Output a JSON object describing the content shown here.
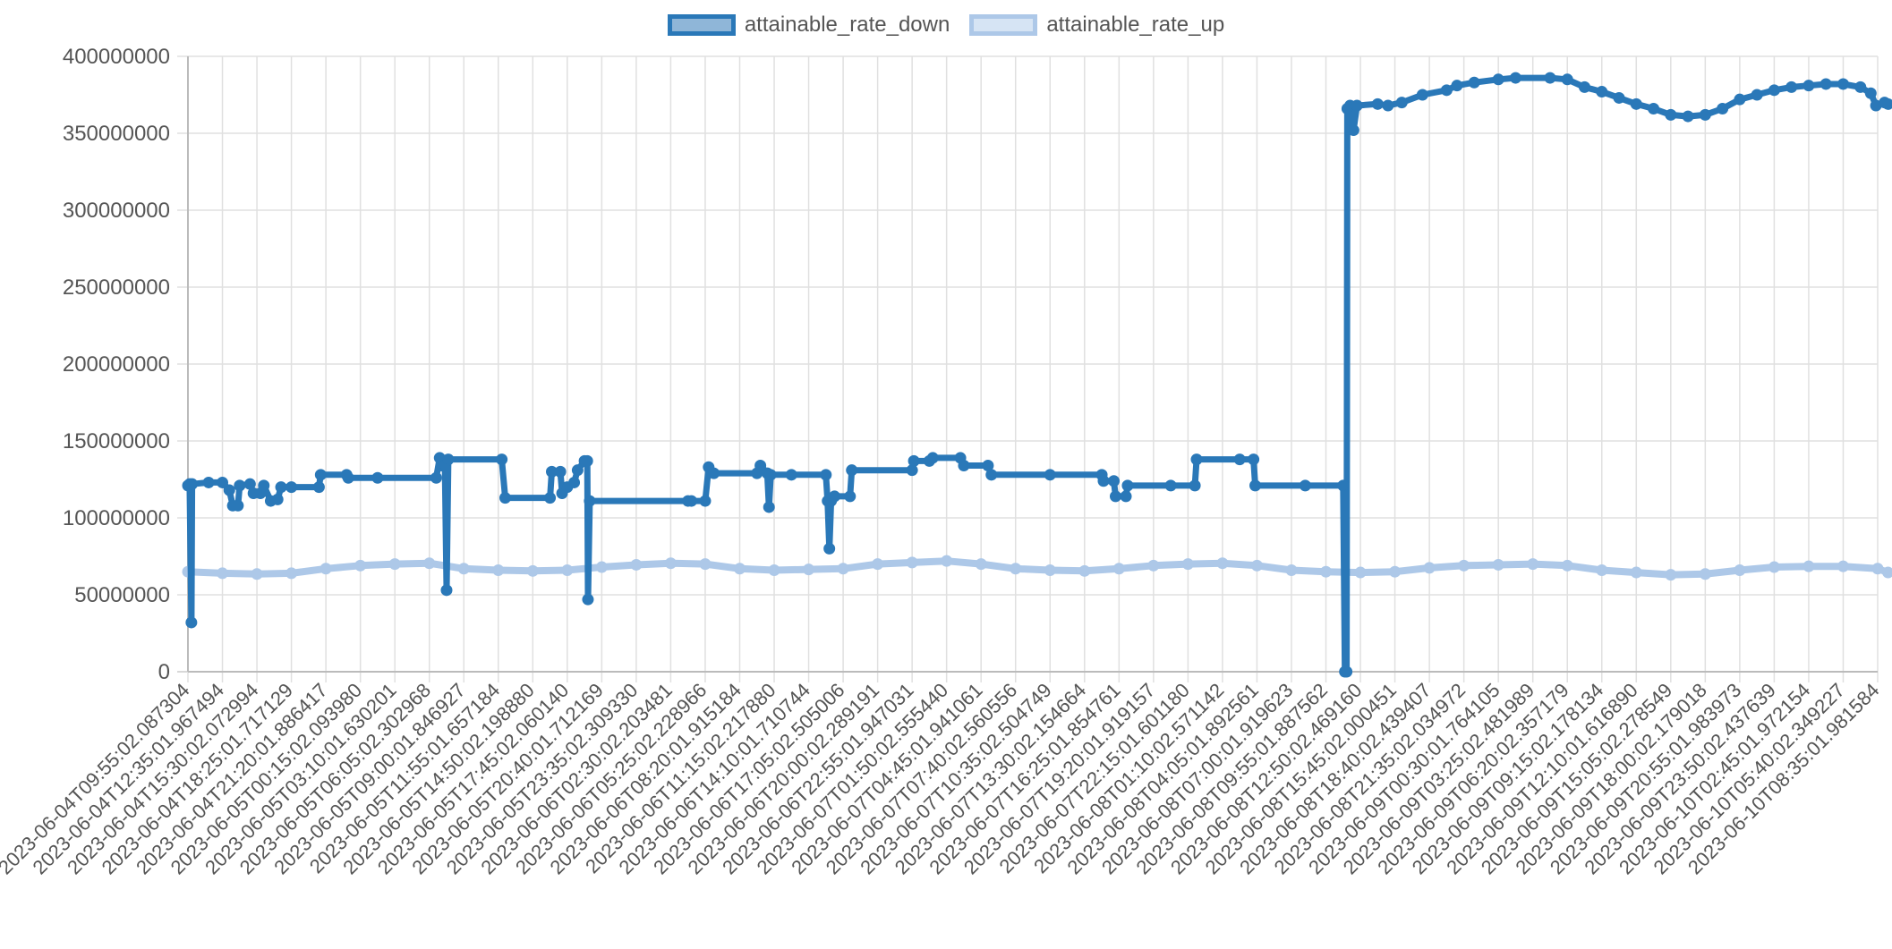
{
  "chart_data": {
    "type": "line",
    "legend_position": "top",
    "grid": true,
    "ylim": [
      0,
      400000000
    ],
    "y_ticks": [
      "0",
      "50000000",
      "100000000",
      "150000000",
      "200000000",
      "250000000",
      "300000000",
      "350000000",
      "400000000"
    ],
    "x_tick_labels": [
      "2023-06-04T09:55:02.087304",
      "2023-06-04T12:35:01.967494",
      "2023-06-04T15:30:02.072994",
      "2023-06-04T18:25:01.717129",
      "2023-06-04T21:20:01.886417",
      "2023-06-05T00:15:02.093980",
      "2023-06-05T03:10:01.630201",
      "2023-06-05T06:05:02.302968",
      "2023-06-05T09:00:01.846927",
      "2023-06-05T11:55:01.657184",
      "2023-06-05T14:50:02.198880",
      "2023-06-05T17:45:02.060140",
      "2023-06-05T20:40:01.712169",
      "2023-06-05T23:35:02.309330",
      "2023-06-06T02:30:02.203481",
      "2023-06-06T05:25:02.228966",
      "2023-06-06T08:20:01.915184",
      "2023-06-06T11:15:02.217880",
      "2023-06-06T14:10:01.710744",
      "2023-06-06T17:05:02.505006",
      "2023-06-06T20:00:02.289191",
      "2023-06-06T22:55:01.947031",
      "2023-06-07T01:50:02.555440",
      "2023-06-07T04:45:01.941061",
      "2023-06-07T07:40:02.560556",
      "2023-06-07T10:35:02.504749",
      "2023-06-07T13:30:02.154664",
      "2023-06-07T16:25:01.854761",
      "2023-06-07T19:20:01.919157",
      "2023-06-07T22:15:01.601180",
      "2023-06-08T01:10:02.571142",
      "2023-06-08T04:05:01.892561",
      "2023-06-08T07:00:01.919623",
      "2023-06-08T09:55:01.887562",
      "2023-06-08T12:50:02.469160",
      "2023-06-08T15:45:02.000451",
      "2023-06-08T18:40:02.439407",
      "2023-06-08T21:35:02.034972",
      "2023-06-09T00:30:01.764105",
      "2023-06-09T03:25:02.481989",
      "2023-06-09T06:20:02.357179",
      "2023-06-09T09:15:02.178134",
      "2023-06-09T12:10:01.616890",
      "2023-06-09T15:05:02.278549",
      "2023-06-09T18:00:02.179018",
      "2023-06-09T20:55:01.983973",
      "2023-06-09T23:50:02.437639",
      "2023-06-10T02:45:01.972154",
      "2023-06-10T05:40:02.349227",
      "2023-06-10T08:35:01.981584"
    ],
    "series": [
      {
        "name": "attainable_rate_down",
        "color": "#2a78b8",
        "points": [
          [
            0.0,
            121000000
          ],
          [
            0.05,
            122000000
          ],
          [
            0.1,
            32000000
          ],
          [
            0.12,
            122000000
          ],
          [
            0.6,
            123000000
          ],
          [
            1.0,
            123000000
          ],
          [
            1.2,
            118000000
          ],
          [
            1.3,
            108000000
          ],
          [
            1.45,
            108000000
          ],
          [
            1.5,
            121000000
          ],
          [
            1.8,
            122000000
          ],
          [
            1.9,
            116000000
          ],
          [
            2.1,
            116000000
          ],
          [
            2.2,
            121000000
          ],
          [
            2.4,
            111000000
          ],
          [
            2.6,
            112000000
          ],
          [
            2.7,
            120000000
          ],
          [
            3.0,
            120000000
          ],
          [
            3.8,
            120000000
          ],
          [
            3.85,
            128000000
          ],
          [
            4.6,
            128000000
          ],
          [
            4.65,
            126000000
          ],
          [
            5.5,
            126000000
          ],
          [
            7.2,
            126000000
          ],
          [
            7.3,
            139000000
          ],
          [
            7.35,
            134000000
          ],
          [
            7.45,
            134000000
          ],
          [
            7.5,
            53000000
          ],
          [
            7.55,
            138000000
          ],
          [
            9.1,
            138000000
          ],
          [
            9.2,
            113000000
          ],
          [
            10.5,
            113000000
          ],
          [
            10.55,
            130000000
          ],
          [
            10.8,
            130000000
          ],
          [
            10.85,
            116000000
          ],
          [
            11.0,
            120000000
          ],
          [
            11.2,
            123000000
          ],
          [
            11.3,
            131000000
          ],
          [
            11.5,
            137000000
          ],
          [
            11.58,
            137000000
          ],
          [
            11.6,
            47000000
          ],
          [
            11.65,
            111000000
          ],
          [
            14.5,
            111000000
          ],
          [
            14.6,
            111000000
          ],
          [
            15.0,
            111000000
          ],
          [
            15.1,
            133000000
          ],
          [
            15.25,
            129000000
          ],
          [
            16.5,
            129000000
          ],
          [
            16.6,
            134000000
          ],
          [
            16.8,
            129000000
          ],
          [
            16.85,
            107000000
          ],
          [
            16.9,
            128000000
          ],
          [
            17.5,
            128000000
          ],
          [
            18.5,
            128000000
          ],
          [
            18.55,
            111000000
          ],
          [
            18.6,
            80000000
          ],
          [
            18.65,
            111000000
          ],
          [
            18.75,
            114000000
          ],
          [
            19.2,
            114000000
          ],
          [
            19.25,
            131000000
          ],
          [
            21.0,
            131000000
          ],
          [
            21.05,
            137000000
          ],
          [
            21.5,
            137000000
          ],
          [
            21.6,
            139000000
          ],
          [
            22.4,
            139000000
          ],
          [
            22.5,
            134000000
          ],
          [
            23.2,
            134000000
          ],
          [
            23.3,
            128000000
          ],
          [
            25.0,
            128000000
          ],
          [
            26.5,
            128000000
          ],
          [
            26.55,
            124000000
          ],
          [
            26.85,
            124000000
          ],
          [
            26.9,
            114000000
          ],
          [
            27.2,
            114000000
          ],
          [
            27.25,
            121000000
          ],
          [
            28.5,
            121000000
          ],
          [
            29.2,
            121000000
          ],
          [
            29.25,
            138000000
          ],
          [
            30.5,
            138000000
          ],
          [
            30.9,
            138000000
          ],
          [
            30.95,
            121000000
          ],
          [
            32.4,
            121000000
          ],
          [
            33.5,
            121000000
          ],
          [
            33.55,
            0
          ],
          [
            33.6,
            0
          ],
          [
            33.62,
            366000000
          ],
          [
            33.7,
            368000000
          ],
          [
            33.8,
            352000000
          ],
          [
            33.9,
            368000000
          ],
          [
            34.5,
            369000000
          ],
          [
            34.8,
            368000000
          ],
          [
            35.2,
            370000000
          ],
          [
            35.8,
            375000000
          ],
          [
            36.5,
            378000000
          ],
          [
            36.8,
            381000000
          ],
          [
            37.3,
            383000000
          ],
          [
            38.0,
            385000000
          ],
          [
            38.5,
            386000000
          ],
          [
            39.5,
            386000000
          ],
          [
            40.0,
            385000000
          ],
          [
            40.5,
            380000000
          ],
          [
            41.0,
            377000000
          ],
          [
            41.5,
            373000000
          ],
          [
            42.0,
            369000000
          ],
          [
            42.5,
            366000000
          ],
          [
            43.0,
            362000000
          ],
          [
            43.5,
            361000000
          ],
          [
            44.0,
            362000000
          ],
          [
            44.5,
            366000000
          ],
          [
            45.0,
            372000000
          ],
          [
            45.5,
            375000000
          ],
          [
            46.0,
            378000000
          ],
          [
            46.5,
            380000000
          ],
          [
            47.0,
            381000000
          ],
          [
            47.5,
            382000000
          ],
          [
            48.0,
            382000000
          ],
          [
            48.5,
            380000000
          ],
          [
            48.8,
            376000000
          ],
          [
            48.95,
            368000000
          ],
          [
            49.2,
            370000000
          ],
          [
            49.3,
            369000000
          ]
        ]
      },
      {
        "name": "attainable_rate_up",
        "color": "#adc8e8",
        "points": [
          [
            0.0,
            65000000
          ],
          [
            1.0,
            64000000
          ],
          [
            2.0,
            63500000
          ],
          [
            3.0,
            64000000
          ],
          [
            4.0,
            67000000
          ],
          [
            5.0,
            69000000
          ],
          [
            6.0,
            70000000
          ],
          [
            7.0,
            70500000
          ],
          [
            8.0,
            67000000
          ],
          [
            9.0,
            66000000
          ],
          [
            10.0,
            65500000
          ],
          [
            11.0,
            66000000
          ],
          [
            12.0,
            68000000
          ],
          [
            13.0,
            69500000
          ],
          [
            14.0,
            70500000
          ],
          [
            15.0,
            70000000
          ],
          [
            16.0,
            67000000
          ],
          [
            17.0,
            66000000
          ],
          [
            18.0,
            66500000
          ],
          [
            19.0,
            67000000
          ],
          [
            20.0,
            70000000
          ],
          [
            21.0,
            71000000
          ],
          [
            22.0,
            72000000
          ],
          [
            23.0,
            70000000
          ],
          [
            24.0,
            67000000
          ],
          [
            25.0,
            66000000
          ],
          [
            26.0,
            65500000
          ],
          [
            27.0,
            67000000
          ],
          [
            28.0,
            69000000
          ],
          [
            29.0,
            70000000
          ],
          [
            30.0,
            70500000
          ],
          [
            31.0,
            69000000
          ],
          [
            32.0,
            66000000
          ],
          [
            33.0,
            65000000
          ],
          [
            34.0,
            64500000
          ],
          [
            35.0,
            65000000
          ],
          [
            36.0,
            67500000
          ],
          [
            37.0,
            69000000
          ],
          [
            38.0,
            69500000
          ],
          [
            39.0,
            70000000
          ],
          [
            40.0,
            69000000
          ],
          [
            41.0,
            66000000
          ],
          [
            42.0,
            64500000
          ],
          [
            43.0,
            63000000
          ],
          [
            44.0,
            63500000
          ],
          [
            45.0,
            66000000
          ],
          [
            46.0,
            68000000
          ],
          [
            47.0,
            68500000
          ],
          [
            48.0,
            68500000
          ],
          [
            49.0,
            67000000
          ],
          [
            49.3,
            64500000
          ]
        ]
      }
    ]
  }
}
